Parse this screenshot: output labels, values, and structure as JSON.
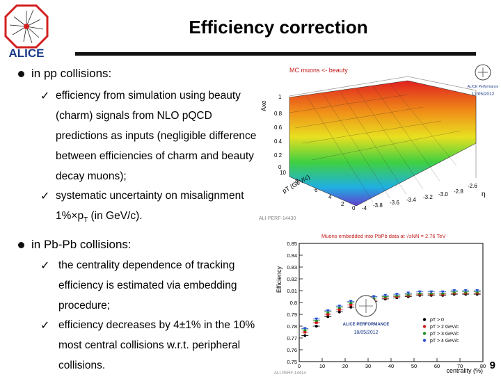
{
  "logo": {
    "text": "ALICE"
  },
  "title": "Efficiency correction",
  "bullets": [
    {
      "heading": "in pp collisions:",
      "items": [
        {
          "lines": [
            "efficiency from simulation using beauty",
            "(charm) signals from NLO pQCD",
            "predictions as inputs (negligible difference",
            "between efficiencies of charm and beauty",
            "decay muons);"
          ]
        },
        {
          "lines": [
            "systematic uncertainty on misalignment"
          ],
          "sub_prefix": "1%×p",
          "sub_index": "T",
          "sub_suffix": " (in GeV/c)."
        }
      ]
    },
    {
      "heading": "in Pb-Pb collisions:",
      "items": [
        {
          "lines": [
            "the centrality dependence of tracking",
            "efficiency is estimated via embedding",
            "procedure;"
          ]
        },
        {
          "lines": [
            "efficiency decreases by 4±1% in the 10%",
            "most central collisions w.r.t. peripheral",
            "collisions."
          ]
        }
      ]
    }
  ],
  "plot_top": {
    "legend": "MC muons <- beauty",
    "badge_text": "ALICE Performance",
    "badge_date": "17/05/2012",
    "z_label": "Axe",
    "z_ticks": [
      "1",
      "0.8",
      "0.6",
      "0.4",
      "0.2",
      "0"
    ],
    "pt_label": "pT (GeV/c)",
    "pt_ticks": [
      "10",
      "8",
      "6",
      "4",
      "2",
      "0"
    ],
    "y_ticks": [
      "-4",
      "-3.8",
      "-3.6",
      "-3.4",
      "-3.2",
      "-3.0",
      "-2.8",
      "-2.6"
    ],
    "y_label": "η",
    "footer": "ALI-PERF-14430"
  },
  "chart_data": {
    "type": "scatter",
    "title": "Muons embedded into PbPb data at √sNN = 2.76 TeV",
    "xlabel": "centrality (%)",
    "ylabel": "Efficiency",
    "xlim": [
      0,
      80
    ],
    "ylim": [
      0.75,
      0.85
    ],
    "x_ticks": [
      "0",
      "10",
      "20",
      "30",
      "40",
      "50",
      "60",
      "70",
      "80"
    ],
    "y_ticks": [
      "0.75",
      "0.76",
      "0.77",
      "0.78",
      "0.79",
      "0.8",
      "0.81",
      "0.82",
      "0.83",
      "0.84",
      "0.85"
    ],
    "x": [
      2.5,
      7.5,
      12.5,
      17.5,
      22.5,
      27.5,
      32.5,
      37.5,
      42.5,
      47.5,
      52.5,
      57.5,
      62.5,
      67.5,
      72.5,
      77.5
    ],
    "series": [
      {
        "name": "pT > 0",
        "color": "#000000",
        "values": [
          0.772,
          0.78,
          0.788,
          0.792,
          0.796,
          0.799,
          0.801,
          0.803,
          0.804,
          0.805,
          0.806,
          0.806,
          0.806,
          0.807,
          0.807,
          0.807
        ]
      },
      {
        "name": "pT > 2 GeV/c",
        "color": "#d01818",
        "values": [
          0.775,
          0.783,
          0.79,
          0.794,
          0.798,
          0.8,
          0.802,
          0.804,
          0.805,
          0.806,
          0.807,
          0.807,
          0.807,
          0.808,
          0.808,
          0.808
        ]
      },
      {
        "name": "pT > 3 GeV/c",
        "color": "#1a8f1a",
        "values": [
          0.777,
          0.785,
          0.792,
          0.796,
          0.8,
          0.802,
          0.804,
          0.805,
          0.806,
          0.807,
          0.808,
          0.808,
          0.808,
          0.809,
          0.809,
          0.809
        ]
      },
      {
        "name": "pT > 4 GeV/c",
        "color": "#2850d0",
        "values": [
          0.778,
          0.786,
          0.793,
          0.797,
          0.801,
          0.803,
          0.805,
          0.806,
          0.807,
          0.808,
          0.809,
          0.809,
          0.809,
          0.81,
          0.81,
          0.81
        ]
      }
    ],
    "badge_text": "ALICE PERFORMANCE",
    "badge_date": "18/05/2012",
    "footer": "ALI-PERF-14414"
  },
  "page_number": "9"
}
